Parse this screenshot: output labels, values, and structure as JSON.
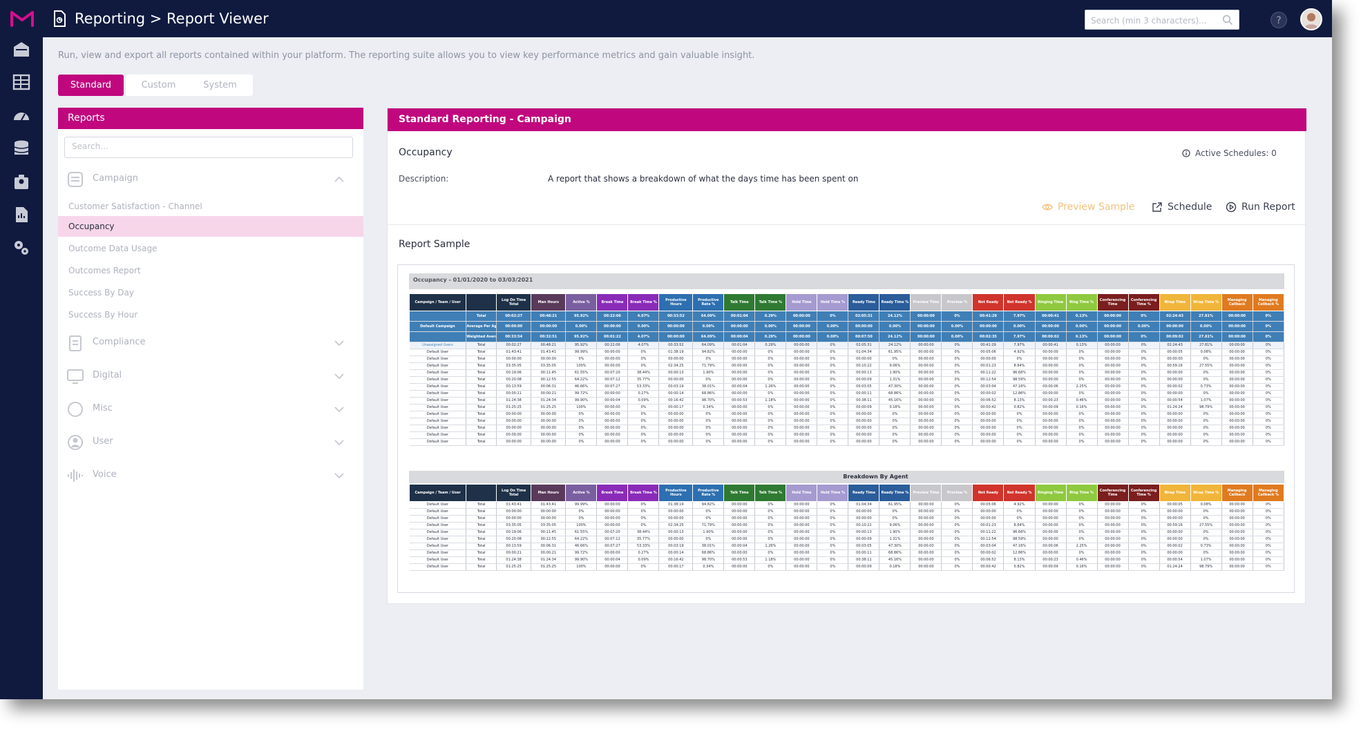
{
  "topbar": {
    "title": "Reporting > Report Viewer",
    "search_placeholder": "Search (min 3 characters)..."
  },
  "intro_text": "Run, view and export all reports contained within your platform. The reporting suite allows you to view key performance metrics and gain valuable insight.",
  "tabs": [
    "Standard",
    "Custom",
    "System"
  ],
  "reports_panel": {
    "title": "Reports",
    "search_placeholder": "Search...",
    "groups": [
      {
        "label": "Campaign",
        "icon": "campaign-icon",
        "expanded": true,
        "items": [
          "Customer Satisfaction - Channel",
          "Occupancy",
          "Outcome Data Usage",
          "Outcomes Report",
          "Success By Day",
          "Success By Hour"
        ]
      },
      {
        "label": "Compliance",
        "icon": "compliance-icon"
      },
      {
        "label": "Digital",
        "icon": "digital-icon"
      },
      {
        "label": "Misc",
        "icon": "misc-icon"
      },
      {
        "label": "User",
        "icon": "user-icon"
      },
      {
        "label": "Voice",
        "icon": "voice-icon"
      }
    ],
    "selected_item": "Occupancy"
  },
  "detail": {
    "header": "Standard Reporting - Campaign",
    "report_name": "Occupancy",
    "active_schedules": "Active Schedules: 0",
    "description_label": "Description:",
    "description": "A report that shows a breakdown of what the days time has been spent on",
    "actions": {
      "preview": "Preview Sample",
      "schedule": "Schedule",
      "run": "Run Report"
    },
    "sample_title": "Report Sample"
  },
  "report_preview": {
    "date_range": "Occupancy - 01/01/2020 to 03/03/2021",
    "breakdown_title": "Breakdown By Agent",
    "columns": [
      {
        "label": "Campaign / Team / User",
        "color": "#1e3148"
      },
      {
        "label": "",
        "color": "#1e3148"
      },
      {
        "label": "Log On Time Total",
        "color": "#1e3148"
      },
      {
        "label": "Man Hours",
        "color": "#5a3a5a"
      },
      {
        "label": "Active %",
        "color": "#7a5fa0"
      },
      {
        "label": "Break Time",
        "color": "#8a2bb8"
      },
      {
        "label": "Break Time %",
        "color": "#8a2bb8"
      },
      {
        "label": "Productive Hours",
        "color": "#2d6fb0"
      },
      {
        "label": "Productive Rate %",
        "color": "#2d6fb0"
      },
      {
        "label": "Talk Time",
        "color": "#2f7a32"
      },
      {
        "label": "Talk Time %",
        "color": "#2f7a32"
      },
      {
        "label": "Hold Time",
        "color": "#a59bd0"
      },
      {
        "label": "Hold Time %",
        "color": "#a59bd0"
      },
      {
        "label": "Ready Time",
        "color": "#2a5d9a"
      },
      {
        "label": "Ready Time %",
        "color": "#2a5d9a"
      },
      {
        "label": "Preview Time",
        "color": "#c8c8cc"
      },
      {
        "label": "Preview %",
        "color": "#c8c8cc"
      },
      {
        "label": "Not Ready",
        "color": "#d0342c"
      },
      {
        "label": "Not Ready %",
        "color": "#d0342c"
      },
      {
        "label": "Ringing Time",
        "color": "#8fc93f"
      },
      {
        "label": "Ring Time %",
        "color": "#8fc93f"
      },
      {
        "label": "Conferencing Time",
        "color": "#7a1e1e"
      },
      {
        "label": "Conferencing Time %",
        "color": "#7a1e1e"
      },
      {
        "label": "Wrap Time",
        "color": "#f0b53a"
      },
      {
        "label": "Wrap Time %",
        "color": "#f0b53a"
      },
      {
        "label": "Managing Callback",
        "color": "#e07a1f"
      },
      {
        "label": "Managing Callback %",
        "color": "#e07a1f"
      }
    ],
    "summary_rows": [
      [
        "Total",
        "00:02:27",
        "00:48:21",
        "95.92%",
        "00:22:06",
        "4.07%",
        "00:33:52",
        "64.09%",
        "00:01:04",
        "0.29%",
        "00:00:00",
        "0%",
        "02:05:31",
        "24.12%",
        "00:00:00",
        "0%",
        "00:41:29",
        "7.97%",
        "00:00:41",
        "0.13%",
        "00:00:00",
        "0%",
        "02:24:43",
        "27.81%",
        "00:00:00",
        "0%"
      ],
      [
        "Average Per Agent",
        "00:00:00",
        "00:00:00",
        "0.00%",
        "00:00:00",
        "0.00%",
        "00:00:00",
        "0.00%",
        "00:00:00",
        "0.00%",
        "00:00:00",
        "0.00%",
        "00:00:00",
        "0.00%",
        "00:00:00",
        "0.00%",
        "00:00:00",
        "0.00%",
        "00:00:00",
        "0.00%",
        "00:00:00",
        "0.00%",
        "00:00:00",
        "0.00%",
        "00:00:00",
        "0%"
      ],
      [
        "Weighted Average Per Agent",
        "00:33:54",
        "00:32:51",
        "95.92%",
        "00:01:22",
        "4.07%",
        "00:00:00",
        "64.09%",
        "00:00:04",
        "0.29%",
        "00:00:00",
        "0.00%",
        "00:07:50",
        "24.12%",
        "00:00:00",
        "0.00%",
        "00:02:35",
        "7.97%",
        "00:00:02",
        "0.13%",
        "00:00:00",
        "0%",
        "00:09:02",
        "27.81%",
        "00:00:00",
        "0%"
      ]
    ],
    "summary_label": "Default Campaign",
    "agent_rows": [
      [
        "Unassigned Users",
        "Total",
        "00:02:27",
        "00:48:21",
        "95.92%",
        "00:22:06",
        "4.07%",
        "00:33:52",
        "64.09%",
        "00:01:04",
        "0.29%",
        "00:00:00",
        "0%",
        "02:05:31",
        "24.12%",
        "00:00:00",
        "0%",
        "00:41:29",
        "7.97%",
        "00:00:41",
        "0.13%",
        "00:00:00",
        "0%",
        "02:24:43",
        "27.81%",
        "00:00:00",
        "0%"
      ],
      [
        "Default User",
        "Total",
        "01:43:41",
        "01:43:41",
        "99.99%",
        "00:00:00",
        "0%",
        "01:38:19",
        "94.82%",
        "00:00:00",
        "0%",
        "00:00:00",
        "0%",
        "01:04:34",
        "61.95%",
        "00:00:00",
        "0%",
        "00:05:06",
        "4.92%",
        "00:00:00",
        "0%",
        "00:00:00",
        "0%",
        "00:00:05",
        "0.08%",
        "00:00:00",
        "0%"
      ],
      [
        "Default User",
        "Total",
        "00:00:00",
        "00:00:00",
        "0%",
        "00:00:00",
        "0%",
        "00:00:00",
        "0%",
        "00:00:00",
        "0%",
        "00:00:00",
        "0%",
        "00:00:00",
        "0%",
        "00:00:00",
        "0%",
        "00:00:00",
        "0%",
        "00:00:00",
        "0%",
        "00:00:00",
        "0%",
        "00:00:00",
        "0%",
        "00:00:00",
        "0%"
      ],
      [
        "Default User",
        "Total",
        "03:35:05",
        "03:35:05",
        "100%",
        "00:00:00",
        "0%",
        "02:34:25",
        "71.79%",
        "00:00:00",
        "0%",
        "00:00:00",
        "0%",
        "00:10:22",
        "9.06%",
        "00:00:00",
        "0%",
        "00:01:23",
        "8.64%",
        "00:00:00",
        "0%",
        "00:00:00",
        "0%",
        "00:59:16",
        "27.55%",
        "00:00:00",
        "0%"
      ],
      [
        "Default User",
        "Total",
        "00:19:06",
        "00:11:45",
        "61.55%",
        "00:07:20",
        "38.44%",
        "00:00:13",
        "1.90%",
        "00:00:00",
        "0%",
        "00:00:00",
        "0%",
        "00:00:13",
        "1.90%",
        "00:00:00",
        "0%",
        "00:11:22",
        "96.66%",
        "00:00:00",
        "0%",
        "00:00:00",
        "0%",
        "00:00:00",
        "0%",
        "00:00:00",
        "0%"
      ],
      [
        "Default User",
        "Total",
        "00:20:08",
        "00:12:55",
        "64.22%",
        "00:07:12",
        "35.77%",
        "00:00:00",
        "0%",
        "00:00:00",
        "0%",
        "00:00:00",
        "0%",
        "00:00:09",
        "1.31%",
        "00:00:00",
        "0%",
        "00:12:54",
        "98.59%",
        "00:00:00",
        "0%",
        "00:00:00",
        "0%",
        "00:00:00",
        "0%",
        "00:00:00",
        "0%"
      ],
      [
        "Default User",
        "Total",
        "00:13:59",
        "00:06:31",
        "46.66%",
        "00:07:27",
        "53.33%",
        "00:03:19",
        "38.01%",
        "00:00:04",
        "1.26%",
        "00:00:00",
        "0%",
        "00:03:05",
        "47.30%",
        "00:00:00",
        "0%",
        "00:03:04",
        "47.16%",
        "00:00:06",
        "2.25%",
        "00:00:00",
        "0%",
        "00:00:02",
        "0.73%",
        "00:00:00",
        "0%"
      ],
      [
        "Default User",
        "Total",
        "00:00:21",
        "00:00:21",
        "99.72%",
        "00:00:00",
        "0.27%",
        "00:00:14",
        "68.86%",
        "00:00:00",
        "0%",
        "00:00:00",
        "0%",
        "00:00:11",
        "68.86%",
        "00:00:00",
        "0%",
        "00:00:02",
        "12.86%",
        "00:00:00",
        "0%",
        "00:00:00",
        "0%",
        "00:00:00",
        "0%",
        "00:00:00",
        "0%"
      ],
      [
        "Default User",
        "Total",
        "01:24:38",
        "01:24:34",
        "99.90%",
        "00:00:04",
        "0.09%",
        "00:16:42",
        "98.70%",
        "00:00:53",
        "1.18%",
        "00:00:00",
        "0%",
        "00:38:11",
        "45.16%",
        "00:00:00",
        "0%",
        "00:06:52",
        "8.13%",
        "00:00:23",
        "0.46%",
        "00:00:00",
        "0%",
        "00:00:54",
        "1.07%",
        "00:00:00",
        "0%"
      ],
      [
        "Default User",
        "Total",
        "01:25:25",
        "01:25:25",
        "100%",
        "00:00:00",
        "0%",
        "00:00:17",
        "0.34%",
        "00:00:00",
        "0%",
        "00:00:00",
        "0%",
        "00:00:09",
        "0.18%",
        "00:00:00",
        "0%",
        "00:00:42",
        "0.82%",
        "00:00:09",
        "0.16%",
        "00:00:00",
        "0%",
        "01:24:24",
        "98.79%",
        "00:00:00",
        "0%"
      ],
      [
        "Default User",
        "Total",
        "00:00:00",
        "00:00:00",
        "0%",
        "00:00:00",
        "0%",
        "00:00:00",
        "0%",
        "00:00:00",
        "0%",
        "00:00:00",
        "0%",
        "00:00:00",
        "0%",
        "00:00:00",
        "0%",
        "00:00:00",
        "0%",
        "00:00:00",
        "0%",
        "00:00:00",
        "0%",
        "00:00:00",
        "0%",
        "00:00:00",
        "0%"
      ],
      [
        "Default User",
        "Total",
        "00:00:00",
        "00:00:00",
        "0%",
        "00:00:00",
        "0%",
        "00:00:00",
        "0%",
        "00:00:00",
        "0%",
        "00:00:00",
        "0%",
        "00:00:00",
        "0%",
        "00:00:00",
        "0%",
        "00:00:00",
        "0%",
        "00:00:00",
        "0%",
        "00:00:00",
        "0%",
        "00:00:00",
        "0%",
        "00:00:00",
        "0%"
      ],
      [
        "Default User",
        "Total",
        "00:00:00",
        "00:00:00",
        "0%",
        "00:00:00",
        "0%",
        "00:00:00",
        "0%",
        "00:00:00",
        "0%",
        "00:00:00",
        "0%",
        "00:00:00",
        "0%",
        "00:00:00",
        "0%",
        "00:00:00",
        "0%",
        "00:00:00",
        "0%",
        "00:00:00",
        "0%",
        "00:00:00",
        "0%",
        "00:00:00",
        "0%"
      ],
      [
        "Default User",
        "Total",
        "00:00:00",
        "00:00:00",
        "0%",
        "00:00:00",
        "0%",
        "00:00:00",
        "0%",
        "00:00:00",
        "0%",
        "00:00:00",
        "0%",
        "00:00:00",
        "0%",
        "00:00:00",
        "0%",
        "00:00:00",
        "0%",
        "00:00:00",
        "0%",
        "00:00:00",
        "0%",
        "00:00:00",
        "0%",
        "00:00:00",
        "0%"
      ],
      [
        "Default User",
        "Total",
        "00:00:00",
        "00:00:00",
        "0%",
        "00:00:00",
        "0%",
        "00:00:00",
        "0%",
        "00:00:00",
        "0%",
        "00:00:00",
        "0%",
        "00:00:00",
        "0%",
        "00:00:00",
        "0%",
        "00:00:00",
        "0%",
        "00:00:00",
        "0%",
        "00:00:00",
        "0%",
        "00:00:00",
        "0%",
        "00:00:00",
        "0%"
      ]
    ],
    "breakdown_rows": [
      [
        "Default User",
        "Total",
        "01:43:41",
        "01:43:41",
        "99.99%",
        "00:00:00",
        "0%",
        "01:38:19",
        "94.82%",
        "00:00:00",
        "0%",
        "00:00:00",
        "0%",
        "01:04:34",
        "61.95%",
        "00:00:00",
        "0%",
        "00:05:06",
        "4.92%",
        "00:00:00",
        "0%",
        "00:00:00",
        "0%",
        "00:00:05",
        "0.08%",
        "00:00:00",
        "0%"
      ],
      [
        "Default User",
        "Total",
        "00:00:00",
        "00:00:00",
        "0%",
        "00:00:00",
        "0%",
        "00:00:00",
        "0%",
        "00:00:00",
        "0%",
        "00:00:00",
        "0%",
        "00:00:00",
        "0%",
        "00:00:00",
        "0%",
        "00:00:00",
        "0%",
        "00:00:00",
        "0%",
        "00:00:00",
        "0%",
        "00:00:00",
        "0%",
        "00:00:00",
        "0%"
      ],
      [
        "Default User",
        "Total",
        "00:00:00",
        "00:00:00",
        "0%",
        "00:00:00",
        "0%",
        "00:00:00",
        "0%",
        "00:00:00",
        "0%",
        "00:00:00",
        "0%",
        "00:00:00",
        "0%",
        "00:00:00",
        "0%",
        "00:00:00",
        "0%",
        "00:00:00",
        "0%",
        "00:00:00",
        "0%",
        "00:00:00",
        "0%",
        "00:00:00",
        "0%"
      ],
      [
        "Default User",
        "Total",
        "03:35:05",
        "03:35:05",
        "100%",
        "00:00:00",
        "0%",
        "02:34:25",
        "71.79%",
        "00:00:00",
        "0%",
        "00:00:00",
        "0%",
        "00:10:22",
        "9.06%",
        "00:00:00",
        "0%",
        "00:01:23",
        "8.64%",
        "00:00:00",
        "0%",
        "00:00:00",
        "0%",
        "00:59:16",
        "27.55%",
        "00:00:00",
        "0%"
      ],
      [
        "Default User",
        "Total",
        "00:19:06",
        "00:11:45",
        "61.55%",
        "00:07:20",
        "38.44%",
        "00:00:13",
        "1.90%",
        "00:00:00",
        "0%",
        "00:00:00",
        "0%",
        "00:00:13",
        "1.90%",
        "00:00:00",
        "0%",
        "00:11:22",
        "96.66%",
        "00:00:00",
        "0%",
        "00:00:00",
        "0%",
        "00:00:00",
        "0%",
        "00:00:00",
        "0%"
      ],
      [
        "Default User",
        "Total",
        "00:20:08",
        "00:12:55",
        "64.22%",
        "00:07:12",
        "35.77%",
        "00:00:00",
        "0%",
        "00:00:00",
        "0%",
        "00:00:00",
        "0%",
        "00:00:09",
        "1.31%",
        "00:00:00",
        "0%",
        "00:12:54",
        "98.59%",
        "00:00:00",
        "0%",
        "00:00:00",
        "0%",
        "00:00:00",
        "0%",
        "00:00:00",
        "0%"
      ],
      [
        "Default User",
        "Total",
        "00:13:59",
        "00:06:31",
        "46.66%",
        "00:07:27",
        "53.33%",
        "00:03:19",
        "38.01%",
        "00:00:04",
        "1.26%",
        "00:00:00",
        "0%",
        "00:03:05",
        "47.30%",
        "00:00:00",
        "0%",
        "00:03:04",
        "47.16%",
        "00:00:06",
        "2.25%",
        "00:00:00",
        "0%",
        "00:00:02",
        "0.73%",
        "00:00:00",
        "0%"
      ],
      [
        "Default User",
        "Total",
        "00:00:21",
        "00:00:21",
        "99.72%",
        "00:00:00",
        "0.27%",
        "00:00:14",
        "68.86%",
        "00:00:00",
        "0%",
        "00:00:00",
        "0%",
        "00:00:11",
        "68.86%",
        "00:00:00",
        "0%",
        "00:00:02",
        "12.86%",
        "00:00:00",
        "0%",
        "00:00:00",
        "0%",
        "00:00:00",
        "0%",
        "00:00:00",
        "0%"
      ],
      [
        "Default User",
        "Total",
        "01:24:38",
        "01:24:34",
        "99.90%",
        "00:00:04",
        "0.09%",
        "00:16:42",
        "98.70%",
        "00:00:53",
        "1.18%",
        "00:00:00",
        "0%",
        "00:38:11",
        "45.16%",
        "00:00:00",
        "0%",
        "00:06:52",
        "8.13%",
        "00:00:23",
        "0.46%",
        "00:00:00",
        "0%",
        "00:00:54",
        "1.07%",
        "00:00:00",
        "0%"
      ],
      [
        "Default User",
        "Total",
        "01:25:25",
        "01:25:25",
        "100%",
        "00:00:00",
        "0%",
        "00:00:17",
        "0.34%",
        "00:00:00",
        "0%",
        "00:00:00",
        "0%",
        "00:00:09",
        "0.18%",
        "00:00:00",
        "0%",
        "00:00:42",
        "0.82%",
        "00:00:09",
        "0.16%",
        "00:00:00",
        "0%",
        "01:24:24",
        "98.79%",
        "00:00:00",
        "0%"
      ]
    ]
  },
  "colors": {
    "nav": "#101a3f",
    "accent": "#c0077e",
    "selected_item_bg": "#f7d6ea",
    "preview_action": "#f1c27d"
  }
}
